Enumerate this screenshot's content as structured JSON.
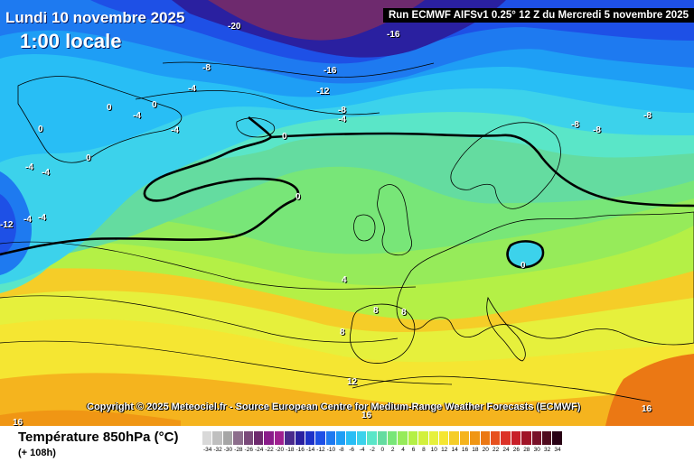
{
  "header": {
    "date_label": "Lundi 10 novembre 2025",
    "time_label": "1:00 locale",
    "run_label": "Run ECMWF AIFSv1 0.25° 12 Z du Mercredi 5 novembre 2025"
  },
  "copyright": "Copyright © 2025 Meteociel.fr - Source European Centre for Medium-Range Weather Forecasts (ECMWF)",
  "footer": {
    "title": "Température 850hPa (°C)",
    "subtitle": "(+ 108h)"
  },
  "legend": {
    "labels": [
      "-34",
      "-32",
      "-30",
      "-28",
      "-26",
      "-24",
      "-22",
      "-20",
      "-18",
      "-16",
      "-14",
      "-12",
      "-10",
      "-8",
      "-6",
      "-4",
      "-2",
      "0",
      "2",
      "4",
      "6",
      "8",
      "10",
      "12",
      "14",
      "16",
      "18",
      "20",
      "22",
      "24",
      "26",
      "28",
      "30",
      "32",
      "34"
    ],
    "colors": [
      "#d9d9d9",
      "#bfbfbf",
      "#a6a6a6",
      "#8c6e8c",
      "#7a4a7a",
      "#6e2a6e",
      "#8a1c8a",
      "#a02090",
      "#4a2a8c",
      "#2a20a0",
      "#1e32c8",
      "#1e50e6",
      "#1e7af0",
      "#1e9ef5",
      "#28bef5",
      "#3cd2eb",
      "#5ae6c8",
      "#64dca0",
      "#78e678",
      "#96eb5a",
      "#b4f046",
      "#d2f03c",
      "#e6f03c",
      "#f5e632",
      "#f5cd28",
      "#f5b41e",
      "#f09614",
      "#eb7814",
      "#e6501e",
      "#dc3228",
      "#c81e28",
      "#a01428",
      "#781028",
      "#500a1e",
      "#280014"
    ]
  },
  "contour_labels": [
    {
      "id": "m20",
      "text": "-20"
    },
    {
      "id": "m16a",
      "text": "-16"
    },
    {
      "id": "m16b",
      "text": "-16"
    },
    {
      "id": "m12a",
      "text": "-12"
    },
    {
      "id": "m12b",
      "text": "-12"
    },
    {
      "id": "m8a",
      "text": "-8"
    },
    {
      "id": "m8b",
      "text": "-8"
    },
    {
      "id": "m8c",
      "text": "-8"
    },
    {
      "id": "m8d",
      "text": "-8"
    },
    {
      "id": "m8e",
      "text": "-8"
    },
    {
      "id": "m4a",
      "text": "-4"
    },
    {
      "id": "m4b",
      "text": "-4"
    },
    {
      "id": "m4c",
      "text": "-4"
    },
    {
      "id": "m4d",
      "text": "-4"
    },
    {
      "id": "m4e",
      "text": "-4"
    },
    {
      "id": "m4f",
      "text": "-4"
    },
    {
      "id": "m4g",
      "text": "-4"
    },
    {
      "id": "m4h",
      "text": "-4"
    },
    {
      "id": "z0a",
      "text": "0"
    },
    {
      "id": "z0b",
      "text": "0"
    },
    {
      "id": "z0c",
      "text": "0"
    },
    {
      "id": "z0d",
      "text": "0"
    },
    {
      "id": "z0e",
      "text": "0"
    },
    {
      "id": "z0f",
      "text": "0"
    },
    {
      "id": "z0g",
      "text": "0"
    },
    {
      "id": "p4",
      "text": "4"
    },
    {
      "id": "p8a",
      "text": "8"
    },
    {
      "id": "p8b",
      "text": "8"
    },
    {
      "id": "p8c",
      "text": "8"
    },
    {
      "id": "p12",
      "text": "12"
    },
    {
      "id": "p16a",
      "text": "16"
    },
    {
      "id": "p16b",
      "text": "16"
    },
    {
      "id": "p16c",
      "text": "16"
    }
  ]
}
